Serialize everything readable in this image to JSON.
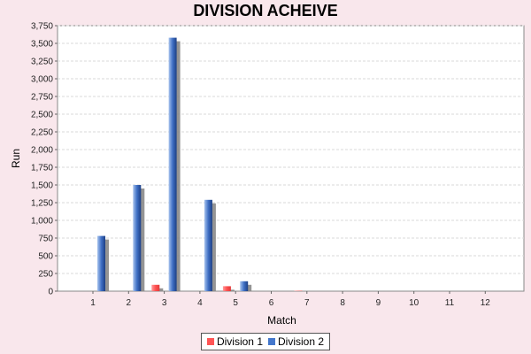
{
  "chart_data": {
    "type": "bar",
    "title": "DIVISION ACHEIVE",
    "xlabel": "Match",
    "ylabel": "Run",
    "categories": [
      "1",
      "2",
      "3",
      "4",
      "5",
      "6",
      "7",
      "8",
      "9",
      "10",
      "11",
      "12"
    ],
    "ylim": [
      0,
      3750
    ],
    "yticks": [
      0,
      250,
      500,
      750,
      1000,
      1250,
      1500,
      1750,
      2000,
      2250,
      2500,
      2750,
      3000,
      3250,
      3500,
      3750
    ],
    "ytick_labels": [
      "0",
      "250",
      "500",
      "750",
      "1,000",
      "1,250",
      "1,500",
      "1,750",
      "2,000",
      "2,250",
      "2,500",
      "2,750",
      "3,000",
      "3,250",
      "3,500",
      "3,750"
    ],
    "series": [
      {
        "name": "Division 1",
        "color": "#ff5555",
        "values": [
          0,
          90,
          0,
          70,
          0,
          5,
          0,
          0,
          0,
          0,
          0,
          0
        ]
      },
      {
        "name": "Division 2",
        "color": "#4477cc",
        "values": [
          780,
          1500,
          3580,
          1290,
          140,
          0,
          0,
          0,
          0,
          0,
          0,
          0
        ]
      }
    ],
    "grid": true,
    "legend": "bottom-center"
  }
}
